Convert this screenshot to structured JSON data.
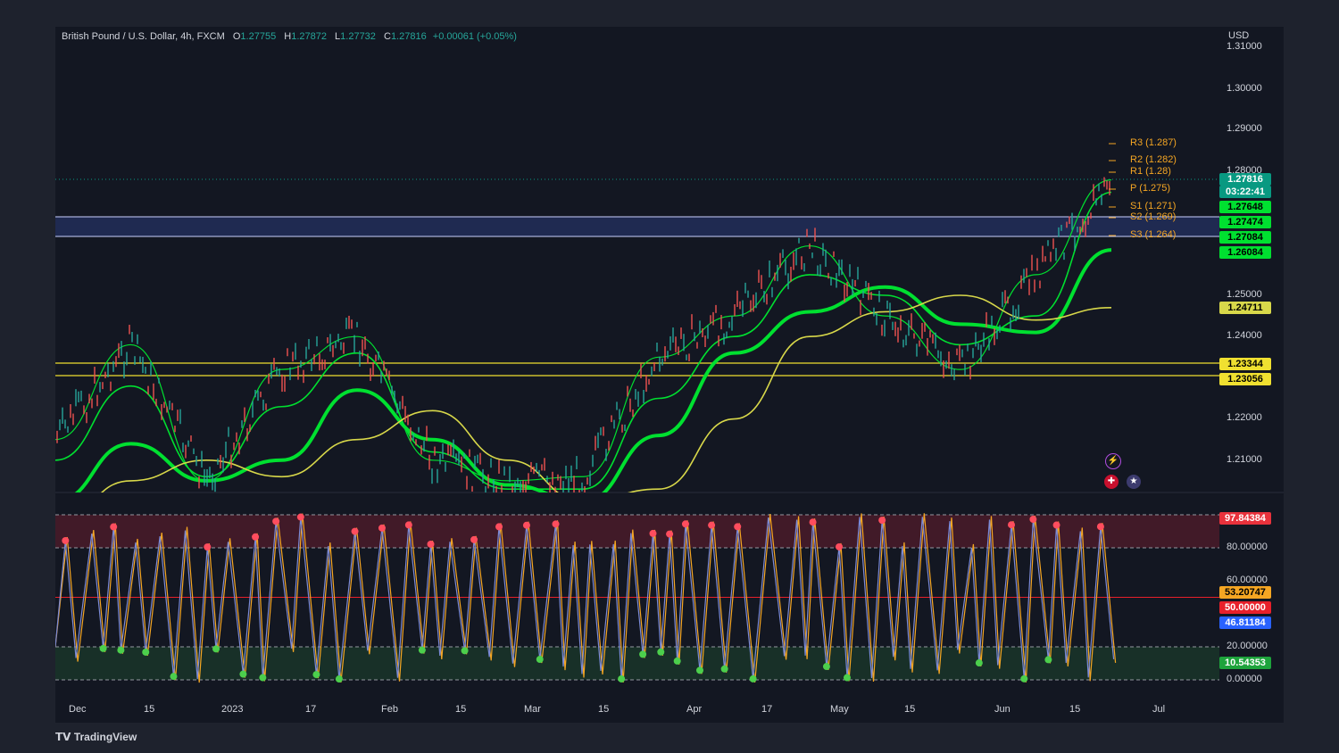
{
  "header": {
    "symbol": "British Pound / U.S. Dollar, 4h, FXCM",
    "open_label": "O",
    "open": "1.27755",
    "high_label": "H",
    "high": "1.27872",
    "low_label": "L",
    "low": "1.27732",
    "close_label": "C",
    "close": "1.27816",
    "change": "+0.00061 (+0.05%)"
  },
  "currency": "USD",
  "brand": "TradingView",
  "colors": {
    "up": "#26a69a",
    "ema_green": "#00e030",
    "ema_red": "#e8202a",
    "sma_yellow": "#d8d84a",
    "pivot": "#f5a623",
    "zone": "#2a3a78"
  },
  "price_axis": [
    "1.31000",
    "1.30000",
    "1.29000",
    "1.28000",
    "1.25000",
    "1.24000",
    "1.22000",
    "1.21000"
  ],
  "price_labels": [
    {
      "text": "1.27816",
      "bg": "#089981",
      "fg": "#ffffff"
    },
    {
      "text": "03:22:41",
      "bg": "#089981",
      "fg": "#ffffff"
    },
    {
      "text": "1.27648",
      "bg": "#00e030",
      "fg": "#000000"
    },
    {
      "text": "1.27474",
      "bg": "#00e030",
      "fg": "#000000"
    },
    {
      "text": "1.27084",
      "bg": "#00e030",
      "fg": "#000000"
    },
    {
      "text": "1.26084",
      "bg": "#00e030",
      "fg": "#000000"
    },
    {
      "text": "1.24711",
      "bg": "#d8d84a",
      "fg": "#000000"
    },
    {
      "text": "1.23344",
      "bg": "#f0e030",
      "fg": "#000000"
    },
    {
      "text": "1.23056",
      "bg": "#f0e030",
      "fg": "#000000"
    }
  ],
  "osc_axis": [
    "80.00000",
    "60.00000",
    "20.00000",
    "0.00000"
  ],
  "osc_labels": [
    {
      "text": "97.84384",
      "bg": "#e8323c",
      "fg": "#ffffff"
    },
    {
      "text": "53.20747",
      "bg": "#f5a623",
      "fg": "#000000"
    },
    {
      "text": "50.00000",
      "bg": "#e8202a",
      "fg": "#ffffff"
    },
    {
      "text": "46.81184",
      "bg": "#2962ff",
      "fg": "#ffffff"
    },
    {
      "text": "10.54353",
      "bg": "#1ea33c",
      "fg": "#ffffff"
    }
  ],
  "pivots": [
    "R3 (1.287)",
    "R2 (1.282)",
    "R1 (1.28)",
    "P (1.275)",
    "S1 (1.271)",
    "S2 (1.269)",
    "S3 (1.264)"
  ],
  "time_axis": [
    "Dec",
    "15",
    "2023",
    "17",
    "Feb",
    "15",
    "Mar",
    "15",
    "Apr",
    "17",
    "May",
    "15",
    "Jun",
    "15",
    "Jul"
  ],
  "event_icons": [
    "lightning-icon",
    "uk-flag-icon",
    "us-flag-icon"
  ],
  "chart_data": {
    "type": "line",
    "title": "British Pound / U.S. Dollar, 4h, FXCM",
    "xlabel": "",
    "ylabel": "USD",
    "ylim": [
      1.2,
      1.31
    ],
    "horizontal_levels": [
      1.27474,
      1.27084,
      1.23344,
      1.23056
    ],
    "x": [
      "Dec",
      "15",
      "2023",
      "17",
      "Feb",
      "15",
      "Mar",
      "15",
      "Apr",
      "17",
      "May",
      "15",
      "Jun",
      "15",
      "Jul"
    ],
    "series": [
      {
        "values": [
          1.215,
          1.238,
          1.205,
          1.232,
          1.24,
          1.21,
          1.205,
          1.206,
          1.235,
          1.245,
          1.262,
          1.245,
          1.232,
          1.255,
          1.278
        ]
      },
      {
        "values": [
          1.21,
          1.228,
          1.206,
          1.223,
          1.236,
          1.212,
          1.203,
          1.203,
          1.225,
          1.24,
          1.255,
          1.25,
          1.238,
          1.245,
          1.275
        ]
      },
      {
        "values": [
          1.2,
          1.214,
          1.205,
          1.21,
          1.227,
          1.215,
          1.204,
          1.2,
          1.216,
          1.236,
          1.246,
          1.252,
          1.243,
          1.241,
          1.261
        ]
      },
      {
        "values": [
          1.195,
          1.205,
          1.21,
          1.206,
          1.215,
          1.222,
          1.21,
          1.2,
          1.203,
          1.22,
          1.24,
          1.246,
          1.25,
          1.244,
          1.247
        ]
      }
    ],
    "oscillator": {
      "levels": [
        80,
        50,
        20,
        0
      ],
      "last": {
        "upper": 97.84384,
        "k": 53.20747,
        "mid": 50.0,
        "d": 46.81184,
        "lower": 10.54353
      }
    }
  }
}
